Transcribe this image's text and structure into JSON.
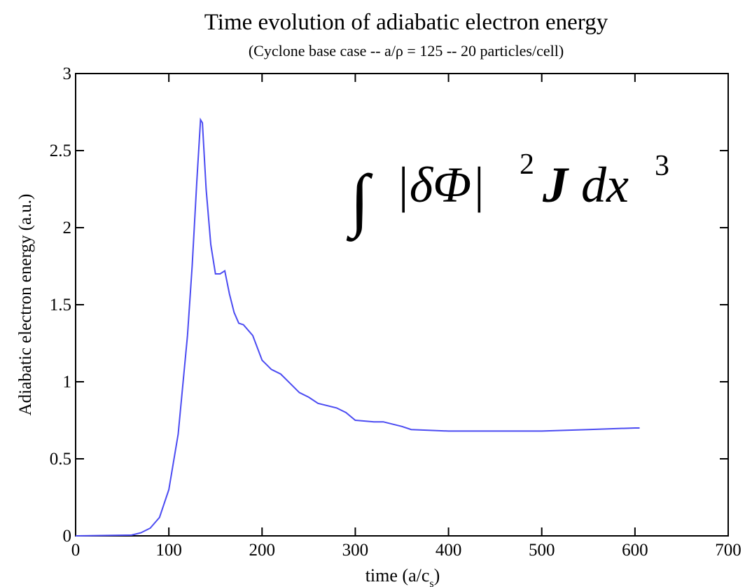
{
  "chart_data": {
    "type": "line",
    "title": "Time  evolution of adiabatic electron energy",
    "subtitle": "(Cyclone base case -- a/ρ = 125 -- 20 particles/cell)",
    "x_label": [
      "time (a/c",
      "s",
      ")"
    ],
    "y_label": "Adiabatic electron energy (a.u.)",
    "annotation": [
      "∫",
      "|δΦ|",
      "2",
      "J",
      "dx",
      "3"
    ],
    "x": [
      0,
      60,
      70,
      80,
      90,
      100,
      110,
      120,
      125,
      130,
      134,
      136,
      140,
      145,
      150,
      155,
      160,
      165,
      170,
      175,
      180,
      190,
      200,
      210,
      220,
      230,
      240,
      250,
      260,
      280,
      290,
      300,
      320,
      330,
      350,
      360,
      400,
      450,
      500,
      550,
      600,
      605
    ],
    "series": [
      {
        "color": "#4b4bf2",
        "values": [
          0,
          0.005,
          0.02,
          0.05,
          0.12,
          0.3,
          0.66,
          1.3,
          1.75,
          2.3,
          2.7,
          2.68,
          2.25,
          1.89,
          1.7,
          1.7,
          1.72,
          1.57,
          1.45,
          1.38,
          1.37,
          1.3,
          1.14,
          1.08,
          1.05,
          0.99,
          0.93,
          0.9,
          0.86,
          0.83,
          0.8,
          0.75,
          0.74,
          0.74,
          0.71,
          0.69,
          0.68,
          0.68,
          0.68,
          0.69,
          0.7,
          0.7
        ]
      }
    ],
    "xlim": [
      0,
      700
    ],
    "ylim": [
      0,
      3
    ],
    "xticks": [
      0,
      100,
      200,
      300,
      400,
      500,
      600,
      700
    ],
    "yticks": [
      0,
      0.5,
      1,
      1.5,
      2,
      2.5,
      3
    ]
  }
}
